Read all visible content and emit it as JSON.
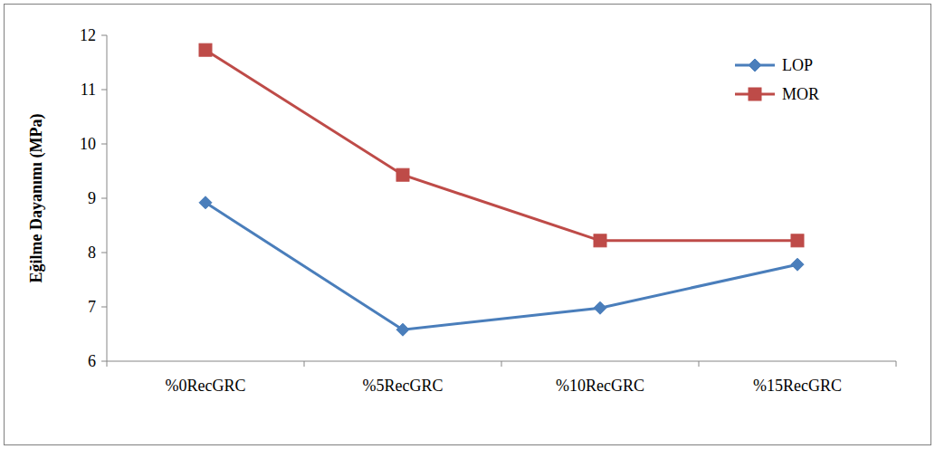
{
  "chart_data": {
    "type": "line",
    "y_label": "Eğilme Dayanımı (MPa)",
    "categories": [
      "%0RecGRC",
      "%5RecGRC",
      "%10RecGRC",
      "%15RecGRC"
    ],
    "series": [
      {
        "name": "LOP",
        "color": "#4a7ebb",
        "marker": "diamond",
        "values": [
          8.92,
          6.58,
          6.98,
          7.78
        ]
      },
      {
        "name": "MOR",
        "color": "#be4b48",
        "marker": "square",
        "values": [
          11.73,
          9.43,
          8.22,
          8.22
        ]
      }
    ],
    "ylim": [
      6,
      12
    ],
    "yticks": [
      6,
      7,
      8,
      9,
      10,
      11,
      12
    ],
    "grid": false,
    "legend": "top-right"
  }
}
